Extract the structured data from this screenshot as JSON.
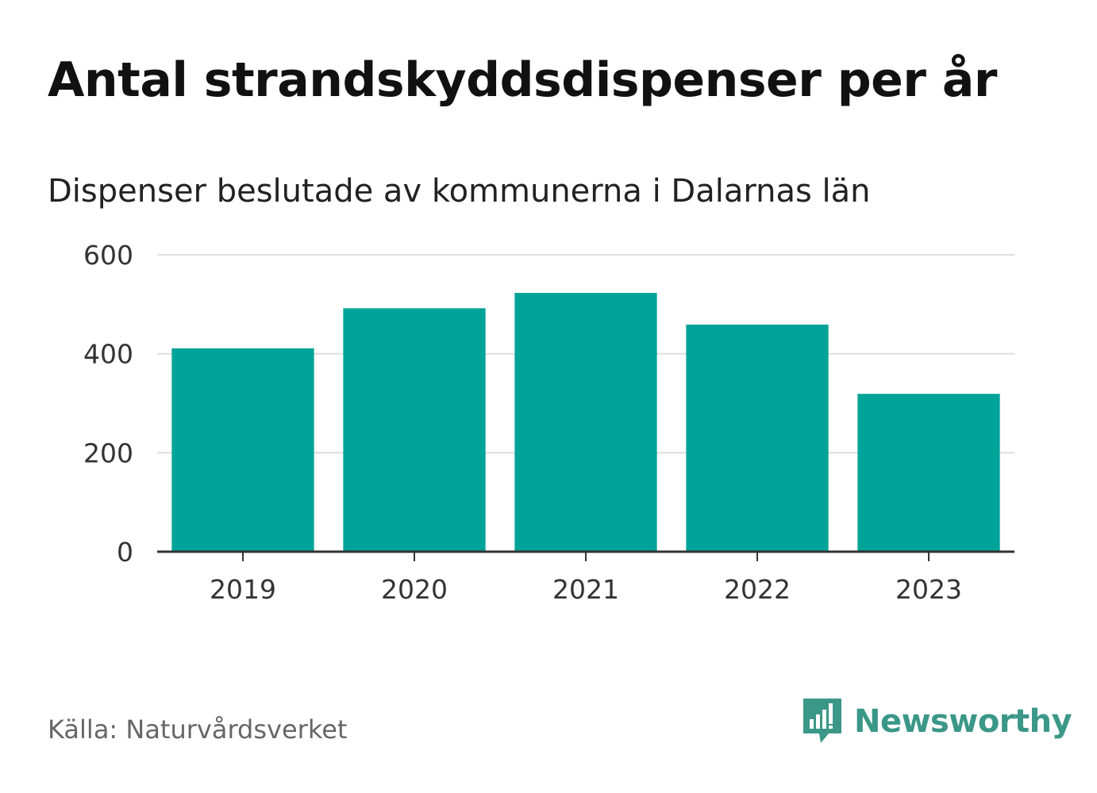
{
  "chart_data": {
    "type": "bar",
    "title": "Antal strandskyddsdispenser per år",
    "subtitle": "Dispenser beslutade av kommunerna i Dalarnas län",
    "categories": [
      "2019",
      "2020",
      "2021",
      "2022",
      "2023"
    ],
    "values": [
      411,
      492,
      523,
      459,
      319
    ],
    "ylim": [
      0,
      600
    ],
    "yticks": [
      0,
      200,
      400,
      600
    ],
    "ytick_labels": [
      "0",
      "200",
      "400",
      "600"
    ],
    "xlabel": "",
    "ylabel": "",
    "grid": true,
    "bar_color": "#00a398"
  },
  "footer": {
    "source": "Källa: Naturvårdsverket",
    "brand": "Newsworthy",
    "brand_icon": "newsworthy-logo-icon",
    "brand_color": "#3b9788"
  }
}
